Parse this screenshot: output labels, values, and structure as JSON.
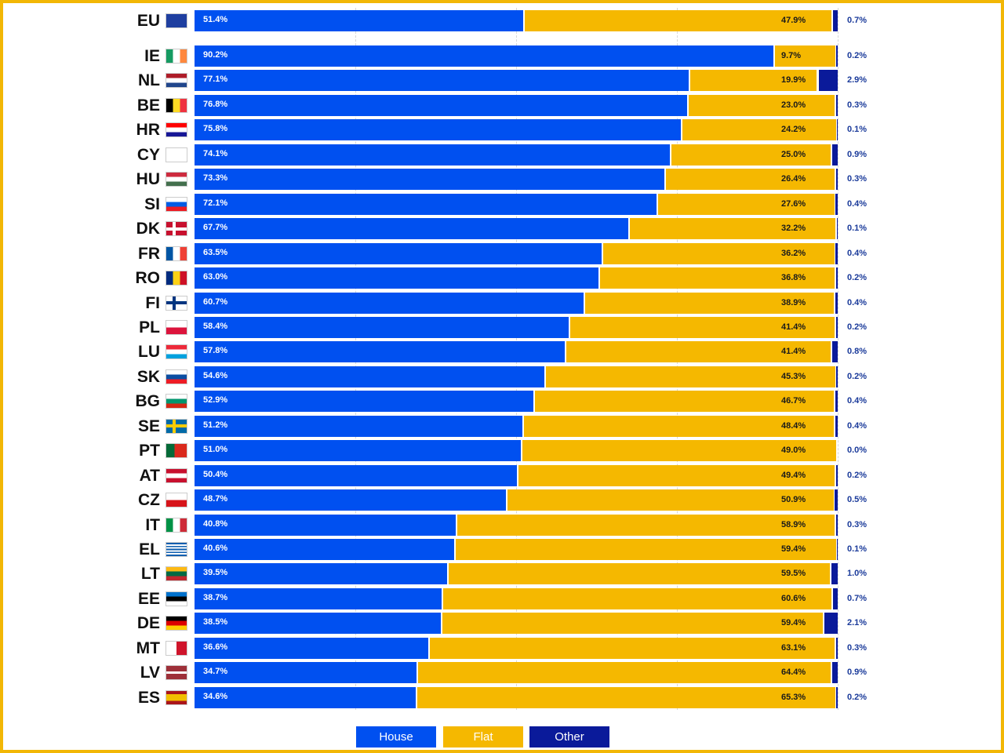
{
  "colors": {
    "house": "#0050f0",
    "flat": "#f5b800",
    "other": "#0a1a9a",
    "frame": "#f2b705"
  },
  "legend": [
    {
      "label": "House",
      "color": "#0050f0"
    },
    {
      "label": "Flat",
      "color": "#f5b800"
    },
    {
      "label": "Other",
      "color": "#0a1a9a"
    }
  ],
  "chart_data": {
    "type": "bar",
    "orientation": "horizontal",
    "stacked": true,
    "xlim": [
      0,
      100
    ],
    "grid": true,
    "legend_position": "bottom",
    "categories": [
      "EU",
      "IE",
      "NL",
      "BE",
      "HR",
      "CY",
      "HU",
      "SI",
      "DK",
      "FR",
      "RO",
      "FI",
      "PL",
      "LU",
      "SK",
      "BG",
      "SE",
      "PT",
      "AT",
      "CZ",
      "IT",
      "EL",
      "LT",
      "EE",
      "DE",
      "MT",
      "LV",
      "ES"
    ],
    "series": [
      {
        "name": "House",
        "values": [
          51.4,
          90.2,
          77.1,
          76.8,
          75.8,
          74.1,
          73.3,
          72.1,
          67.7,
          63.5,
          63.0,
          60.7,
          58.4,
          57.8,
          54.6,
          52.9,
          51.2,
          51.0,
          50.4,
          48.7,
          40.8,
          40.6,
          39.5,
          38.7,
          38.5,
          36.6,
          34.7,
          34.6
        ]
      },
      {
        "name": "Flat",
        "values": [
          47.9,
          9.7,
          19.9,
          23.0,
          24.2,
          25.0,
          26.4,
          27.6,
          32.2,
          36.2,
          36.8,
          38.9,
          41.4,
          41.4,
          45.3,
          46.7,
          48.4,
          49.0,
          49.4,
          50.9,
          58.9,
          59.4,
          59.5,
          60.6,
          59.4,
          63.1,
          64.4,
          65.3
        ]
      },
      {
        "name": "Other",
        "values": [
          0.7,
          0.2,
          2.9,
          0.3,
          0.1,
          0.9,
          0.3,
          0.4,
          0.1,
          0.4,
          0.2,
          0.4,
          0.2,
          0.8,
          0.2,
          0.4,
          0.4,
          0.0,
          0.2,
          0.5,
          0.3,
          0.1,
          1.0,
          0.7,
          2.1,
          0.3,
          0.9,
          0.2
        ]
      }
    ],
    "labels": {
      "House": [
        "51.4%",
        "90.2%",
        "77.1%",
        "76.8%",
        "75.8%",
        "74.1%",
        "73.3%",
        "72.1%",
        "67.7%",
        "63.5%",
        "63.0%",
        "60.7%",
        "58.4%",
        "57.8%",
        "54.6%",
        "52.9%",
        "51.2%",
        "51.0%",
        "50.4%",
        "48.7%",
        "40.8%",
        "40.6%",
        "39.5%",
        "38.7%",
        "38.5%",
        "36.6%",
        "34.7%",
        "34.6%"
      ],
      "Flat": [
        "47.9%",
        "9.7%",
        "19.9%",
        "23.0%",
        "24.2%",
        "25.0%",
        "26.4%",
        "27.6%",
        "32.2%",
        "36.2%",
        "36.8%",
        "38.9%",
        "41.4%",
        "41.4%",
        "45.3%",
        "46.7%",
        "48.4%",
        "49.0%",
        "49.4%",
        "50.9%",
        "58.9%",
        "59.4%",
        "59.5%",
        "60.6%",
        "59.4%",
        "63.1%",
        "64.4%",
        "65.3%"
      ],
      "Other": [
        "0.7%",
        "0.2%",
        "2.9%",
        "0.3%",
        "0.1%",
        "0.9%",
        "0.3%",
        "0.4%",
        "0.1%",
        "0.4%",
        "0.2%",
        "0.4%",
        "0.2%",
        "0.8%",
        "0.2%",
        "0.4%",
        "0.4%",
        "0.0%",
        "0.2%",
        "0.5%",
        "0.3%",
        "0.1%",
        "1.0%",
        "0.7%",
        "2.1%",
        "0.3%",
        "0.9%",
        "0.2%"
      ]
    }
  }
}
